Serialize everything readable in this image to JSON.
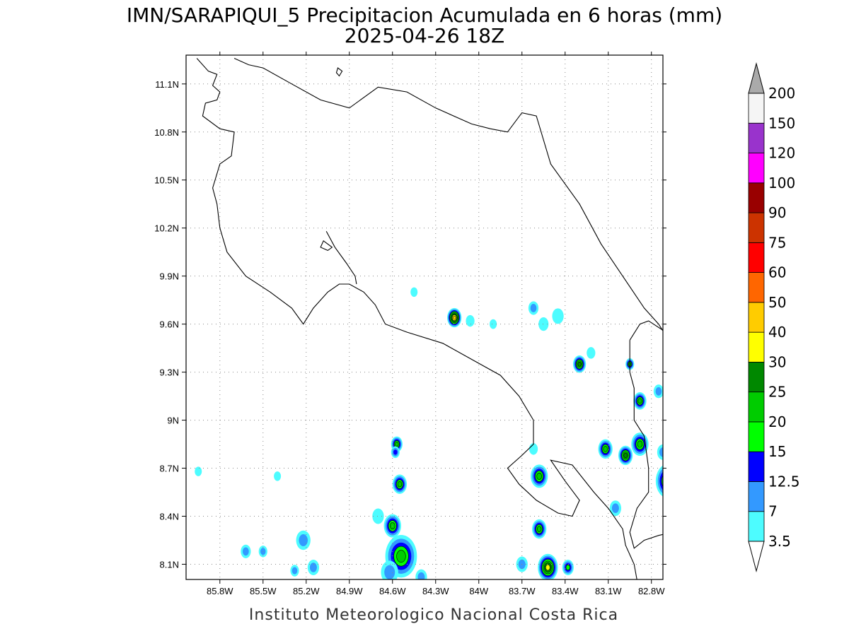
{
  "title": {
    "line1": "IMN/SARAPIQUI_5 Precipitacion Acumulada en 6 horas (mm)",
    "line2": "2025-04-26 18Z"
  },
  "footer": "Instituto Meteorologico Nacional Costa Rica",
  "map": {
    "lon_range": [
      -86.035,
      -82.72
    ],
    "lat_range": [
      8.005,
      11.28
    ],
    "lon_ticks": [
      {
        "value": -85.8,
        "label": "85.8W"
      },
      {
        "value": -85.5,
        "label": "85.5W"
      },
      {
        "value": -85.2,
        "label": "85.2W"
      },
      {
        "value": -84.9,
        "label": "84.9W"
      },
      {
        "value": -84.6,
        "label": "84.6W"
      },
      {
        "value": -84.3,
        "label": "84.3W"
      },
      {
        "value": -84.0,
        "label": "84W"
      },
      {
        "value": -83.7,
        "label": "83.7W"
      },
      {
        "value": -83.4,
        "label": "83.4W"
      },
      {
        "value": -83.1,
        "label": "83.1W"
      },
      {
        "value": -82.8,
        "label": "82.8W"
      }
    ],
    "lat_ticks": [
      {
        "value": 8.1,
        "label": "8.1N"
      },
      {
        "value": 8.4,
        "label": "8.4N"
      },
      {
        "value": 8.7,
        "label": "8.7N"
      },
      {
        "value": 9.0,
        "label": "9N"
      },
      {
        "value": 9.3,
        "label": "9.3N"
      },
      {
        "value": 9.6,
        "label": "9.6N"
      },
      {
        "value": 9.9,
        "label": "9.9N"
      },
      {
        "value": 10.2,
        "label": "10.2N"
      },
      {
        "value": 10.5,
        "label": "10.5N"
      },
      {
        "value": 10.8,
        "label": "10.8N"
      },
      {
        "value": 11.1,
        "label": "11.1N"
      }
    ],
    "grid": true,
    "coastlines": [
      [
        [
          -85.96,
          11.26
        ],
        [
          -85.88,
          11.18
        ],
        [
          -85.82,
          11.16
        ],
        [
          -85.85,
          11.09
        ],
        [
          -85.8,
          11.05
        ],
        [
          -85.82,
          11.0
        ],
        [
          -85.9,
          10.98
        ],
        [
          -85.92,
          10.9
        ],
        [
          -85.8,
          10.82
        ],
        [
          -85.7,
          10.8
        ],
        [
          -85.72,
          10.65
        ],
        [
          -85.8,
          10.6
        ],
        [
          -85.85,
          10.45
        ],
        [
          -85.82,
          10.35
        ],
        [
          -85.8,
          10.2
        ],
        [
          -85.75,
          10.05
        ],
        [
          -85.62,
          9.9
        ],
        [
          -85.45,
          9.8
        ],
        [
          -85.3,
          9.7
        ],
        [
          -85.22,
          9.6
        ],
        [
          -85.15,
          9.7
        ],
        [
          -85.05,
          9.8
        ],
        [
          -84.97,
          9.85
        ],
        [
          -84.9,
          9.85
        ],
        [
          -84.8,
          9.8
        ],
        [
          -84.72,
          9.72
        ],
        [
          -84.65,
          9.6
        ],
        [
          -84.5,
          9.55
        ],
        [
          -84.25,
          9.48
        ],
        [
          -84.05,
          9.38
        ],
        [
          -83.85,
          9.28
        ],
        [
          -83.72,
          9.15
        ],
        [
          -83.62,
          9.0
        ],
        [
          -83.62,
          8.85
        ],
        [
          -83.7,
          8.78
        ],
        [
          -83.8,
          8.7
        ],
        [
          -83.72,
          8.6
        ],
        [
          -83.6,
          8.5
        ],
        [
          -83.45,
          8.42
        ],
        [
          -83.35,
          8.4
        ],
        [
          -83.3,
          8.5
        ],
        [
          -83.4,
          8.62
        ],
        [
          -83.5,
          8.75
        ],
        [
          -83.35,
          8.72
        ],
        [
          -83.2,
          8.55
        ],
        [
          -83.1,
          8.45
        ],
        [
          -83.0,
          8.32
        ],
        [
          -82.98,
          8.22
        ],
        [
          -82.92,
          8.1
        ],
        [
          -82.9,
          8.0
        ]
      ],
      [
        [
          -85.7,
          11.26
        ],
        [
          -85.6,
          11.22
        ],
        [
          -85.5,
          11.2
        ],
        [
          -85.3,
          11.1
        ],
        [
          -85.1,
          11.0
        ],
        [
          -84.9,
          10.95
        ],
        [
          -84.7,
          11.08
        ],
        [
          -84.5,
          11.05
        ],
        [
          -84.3,
          10.95
        ],
        [
          -84.05,
          10.85
        ],
        [
          -83.92,
          10.82
        ],
        [
          -83.8,
          10.8
        ],
        [
          -83.7,
          10.92
        ],
        [
          -83.6,
          10.9
        ],
        [
          -83.5,
          10.6
        ],
        [
          -83.3,
          10.35
        ],
        [
          -83.15,
          10.1
        ],
        [
          -83.0,
          9.9
        ],
        [
          -82.85,
          9.7
        ],
        [
          -82.75,
          9.6
        ],
        [
          -82.7,
          9.53
        ]
      ],
      [
        [
          -85.06,
          10.18
        ],
        [
          -85.0,
          10.08
        ],
        [
          -84.92,
          9.98
        ],
        [
          -84.86,
          9.9
        ],
        [
          -84.85,
          9.85
        ]
      ],
      [
        [
          -82.95,
          9.5
        ],
        [
          -82.95,
          9.3
        ],
        [
          -82.92,
          9.2
        ],
        [
          -82.92,
          9.0
        ],
        [
          -82.85,
          8.9
        ],
        [
          -82.82,
          8.7
        ],
        [
          -82.82,
          8.55
        ],
        [
          -82.9,
          8.45
        ],
        [
          -82.95,
          8.3
        ],
        [
          -82.92,
          8.2
        ],
        [
          -82.85,
          8.25
        ],
        [
          -82.75,
          8.28
        ],
        [
          -82.65,
          8.3
        ]
      ],
      [
        [
          -82.95,
          9.5
        ],
        [
          -82.88,
          9.6
        ],
        [
          -82.82,
          9.62
        ],
        [
          -82.7,
          9.55
        ]
      ]
    ],
    "islands": [
      [
        [
          -85.08,
          10.12
        ],
        [
          -85.02,
          10.08
        ],
        [
          -85.05,
          10.06
        ],
        [
          -85.1,
          10.08
        ]
      ],
      [
        [
          -84.98,
          11.2
        ],
        [
          -84.95,
          11.18
        ],
        [
          -84.97,
          11.15
        ],
        [
          -84.99,
          11.17
        ]
      ]
    ],
    "rain_cells": [
      {
        "lon": -84.17,
        "lat": 9.64,
        "size": 0.05,
        "value": 42
      },
      {
        "lon": -84.06,
        "lat": 9.62,
        "size": 0.03,
        "value": 5
      },
      {
        "lon": -83.9,
        "lat": 9.6,
        "size": 0.025,
        "value": 4
      },
      {
        "lon": -83.62,
        "lat": 9.7,
        "size": 0.035,
        "value": 12
      },
      {
        "lon": -83.55,
        "lat": 9.6,
        "size": 0.035,
        "value": 6
      },
      {
        "lon": -83.45,
        "lat": 9.65,
        "size": 0.04,
        "value": 6
      },
      {
        "lon": -83.3,
        "lat": 9.35,
        "size": 0.045,
        "value": 27
      },
      {
        "lon": -83.22,
        "lat": 9.42,
        "size": 0.03,
        "value": 5
      },
      {
        "lon": -82.95,
        "lat": 9.35,
        "size": 0.03,
        "value": 22
      },
      {
        "lon": -82.88,
        "lat": 9.12,
        "size": 0.045,
        "value": 22
      },
      {
        "lon": -82.75,
        "lat": 9.18,
        "size": 0.035,
        "value": 9
      },
      {
        "lon": -83.12,
        "lat": 8.82,
        "size": 0.05,
        "value": 22
      },
      {
        "lon": -82.98,
        "lat": 8.78,
        "size": 0.05,
        "value": 28
      },
      {
        "lon": -82.88,
        "lat": 8.85,
        "size": 0.06,
        "value": 24
      },
      {
        "lon": -82.72,
        "lat": 8.8,
        "size": 0.04,
        "value": 9
      },
      {
        "lon": -82.68,
        "lat": 8.62,
        "size": 0.09,
        "value": 26
      },
      {
        "lon": -83.58,
        "lat": 8.65,
        "size": 0.06,
        "value": 24
      },
      {
        "lon": -83.62,
        "lat": 8.82,
        "size": 0.03,
        "value": 5
      },
      {
        "lon": -83.05,
        "lat": 8.45,
        "size": 0.04,
        "value": 9
      },
      {
        "lon": -83.58,
        "lat": 8.32,
        "size": 0.05,
        "value": 22
      },
      {
        "lon": -83.52,
        "lat": 8.08,
        "size": 0.07,
        "value": 34
      },
      {
        "lon": -83.38,
        "lat": 8.08,
        "size": 0.04,
        "value": 18
      },
      {
        "lon": -83.7,
        "lat": 8.1,
        "size": 0.04,
        "value": 10
      },
      {
        "lon": -84.54,
        "lat": 8.15,
        "size": 0.11,
        "value": 23
      },
      {
        "lon": -84.6,
        "lat": 8.34,
        "size": 0.06,
        "value": 22
      },
      {
        "lon": -84.55,
        "lat": 8.6,
        "size": 0.05,
        "value": 20
      },
      {
        "lon": -84.57,
        "lat": 8.85,
        "size": 0.04,
        "value": 20
      },
      {
        "lon": -84.58,
        "lat": 8.8,
        "size": 0.03,
        "value": 14
      },
      {
        "lon": -84.7,
        "lat": 8.4,
        "size": 0.04,
        "value": 5
      },
      {
        "lon": -84.62,
        "lat": 8.05,
        "size": 0.06,
        "value": 10
      },
      {
        "lon": -84.4,
        "lat": 8.02,
        "size": 0.04,
        "value": 8
      },
      {
        "lon": -85.22,
        "lat": 8.25,
        "size": 0.05,
        "value": 8
      },
      {
        "lon": -85.5,
        "lat": 8.18,
        "size": 0.03,
        "value": 10
      },
      {
        "lon": -85.62,
        "lat": 8.18,
        "size": 0.035,
        "value": 8
      },
      {
        "lon": -85.15,
        "lat": 8.08,
        "size": 0.04,
        "value": 9
      },
      {
        "lon": -85.28,
        "lat": 8.06,
        "size": 0.03,
        "value": 12
      },
      {
        "lon": -85.4,
        "lat": 8.65,
        "size": 0.02,
        "value": 5
      },
      {
        "lon": -85.95,
        "lat": 8.68,
        "size": 0.02,
        "value": 5
      },
      {
        "lon": -84.45,
        "lat": 9.8,
        "size": 0.02,
        "value": 5
      }
    ]
  },
  "colorbar": {
    "colors": [
      "#4dfcff",
      "#3399ff",
      "#0000ff",
      "#00ff00",
      "#00cc00",
      "#008800",
      "#ffff00",
      "#ffcc00",
      "#ff6600",
      "#ff0000",
      "#cc3300",
      "#990000",
      "#ff00ff",
      "#9933cc",
      "#f5f5f5",
      "#aaaaaa"
    ],
    "labels": [
      "3.5",
      "7",
      "12.5",
      "15",
      "20",
      "25",
      "30",
      "40",
      "50",
      "60",
      "75",
      "90",
      "100",
      "120",
      "150",
      "200"
    ],
    "thresholds": [
      3.5,
      7,
      12.5,
      15,
      20,
      25,
      30,
      40,
      50,
      60,
      75,
      90,
      100,
      120,
      150,
      200
    ]
  }
}
